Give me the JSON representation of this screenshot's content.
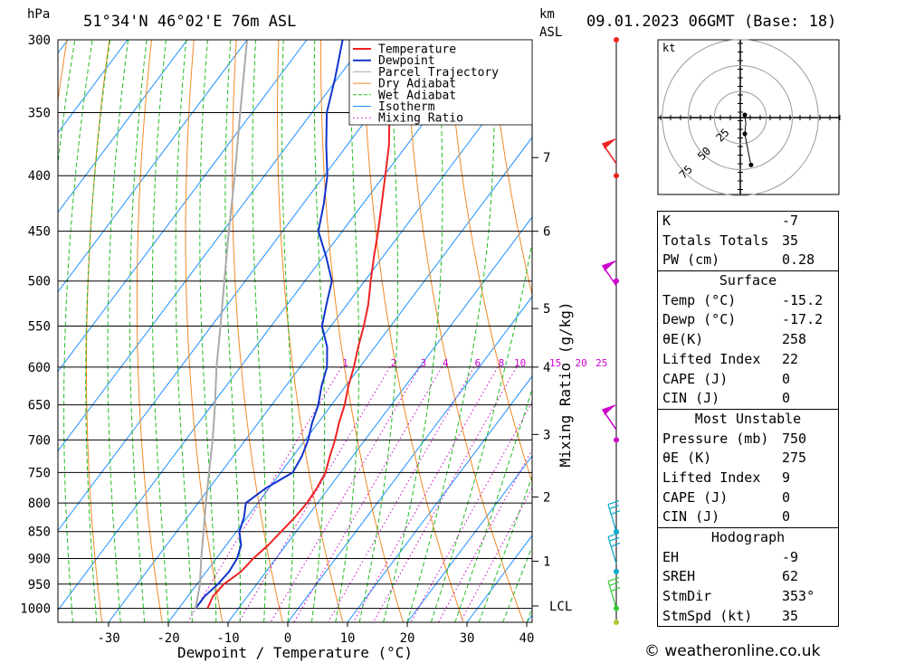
{
  "header": {
    "location": "51°34'N  46°02'E  76m  ASL",
    "datetime": "09.01.2023  06GMT  (Base: 18)",
    "hpa": "hPa",
    "km": "km",
    "asl": "ASL"
  },
  "chart_data": {
    "type": "line",
    "title": "",
    "xlabel": "Dewpoint / Temperature (°C)",
    "ylabel": "hPa",
    "y2label": "Mixing Ratio (g/kg)",
    "pressure_ticks": [
      300,
      350,
      400,
      450,
      500,
      550,
      600,
      650,
      700,
      750,
      800,
      850,
      900,
      950,
      1000
    ],
    "x_ticks": [
      -30,
      -20,
      -10,
      0,
      10,
      20,
      30,
      40
    ],
    "xlim": [
      -40,
      40
    ],
    "ylim": [
      1030,
      300
    ],
    "km_ticks": [
      {
        "label": "7",
        "p": 385
      },
      {
        "label": "6",
        "p": 450
      },
      {
        "label": "5",
        "p": 530
      },
      {
        "label": "4",
        "p": 600
      },
      {
        "label": "3",
        "p": 692
      },
      {
        "label": "2",
        "p": 790
      },
      {
        "label": "1",
        "p": 905
      },
      {
        "label": "LCL",
        "p": 995
      }
    ],
    "mixing_ratio_labels": [
      "1",
      "2",
      "3",
      "4",
      "6",
      "8",
      "10",
      "15",
      "20",
      "25"
    ],
    "legend": [
      "Temperature",
      "Dewpoint",
      "Parcel Trajectory",
      "Dry Adiabat",
      "Wet Adiabat",
      "Isotherm",
      "Mixing Ratio"
    ],
    "legend_position": "top-right",
    "series": [
      {
        "name": "Temperature",
        "color": "#ee2222",
        "points": [
          [
            -15.2,
            1000
          ],
          [
            -15.8,
            975
          ],
          [
            -15.5,
            950
          ],
          [
            -14.2,
            925
          ],
          [
            -13.8,
            900
          ],
          [
            -13.0,
            875
          ],
          [
            -12.5,
            850
          ],
          [
            -12.0,
            825
          ],
          [
            -11.8,
            800
          ],
          [
            -12.0,
            775
          ],
          [
            -12.5,
            750
          ],
          [
            -13.8,
            725
          ],
          [
            -15.0,
            700
          ],
          [
            -16.5,
            675
          ],
          [
            -17.8,
            650
          ],
          [
            -19.5,
            625
          ],
          [
            -21.0,
            600
          ],
          [
            -22.8,
            575
          ],
          [
            -24.5,
            550
          ],
          [
            -26.5,
            525
          ],
          [
            -29.0,
            500
          ],
          [
            -31.5,
            475
          ],
          [
            -34.0,
            450
          ],
          [
            -36.8,
            425
          ],
          [
            -39.8,
            400
          ],
          [
            -43.0,
            375
          ],
          [
            -47.0,
            350
          ],
          [
            -50.5,
            325
          ],
          [
            -53.0,
            300
          ]
        ]
      },
      {
        "name": "Dewpoint",
        "color": "#1133cc",
        "points": [
          [
            -17.2,
            1000
          ],
          [
            -17.2,
            975
          ],
          [
            -16.5,
            950
          ],
          [
            -16.2,
            925
          ],
          [
            -16.5,
            900
          ],
          [
            -17.5,
            875
          ],
          [
            -19.5,
            850
          ],
          [
            -20.5,
            825
          ],
          [
            -22.0,
            800
          ],
          [
            -20.5,
            775
          ],
          [
            -18.0,
            750
          ],
          [
            -18.5,
            725
          ],
          [
            -19.5,
            700
          ],
          [
            -21.0,
            675
          ],
          [
            -22.2,
            650
          ],
          [
            -24.0,
            625
          ],
          [
            -25.5,
            600
          ],
          [
            -28.0,
            575
          ],
          [
            -31.5,
            550
          ],
          [
            -33.5,
            525
          ],
          [
            -35.5,
            500
          ],
          [
            -39.5,
            475
          ],
          [
            -44.0,
            450
          ],
          [
            -46.5,
            425
          ],
          [
            -49.5,
            400
          ],
          [
            -53.5,
            375
          ],
          [
            -57.5,
            350
          ],
          [
            -60.5,
            325
          ],
          [
            -64.0,
            300
          ]
        ]
      },
      {
        "name": "Parcel Trajectory",
        "color": "#aaaaaa",
        "points": [
          [
            -17.2,
            1000
          ],
          [
            -19.5,
            950
          ],
          [
            -22.5,
            900
          ],
          [
            -25.5,
            850
          ],
          [
            -28.7,
            800
          ],
          [
            -32.0,
            750
          ],
          [
            -35.5,
            700
          ],
          [
            -39.5,
            650
          ],
          [
            -44.0,
            600
          ],
          [
            -48.5,
            550
          ],
          [
            -53.5,
            500
          ],
          [
            -59.0,
            450
          ],
          [
            -65.0,
            400
          ],
          [
            -72.0,
            350
          ],
          [
            -80.0,
            300
          ]
        ]
      }
    ]
  },
  "wind": {
    "colors": [
      "#ee2222",
      "#cc00cc",
      "#00aacc",
      "#33cc33",
      "#99cc33"
    ],
    "surface_dots": [
      "#ee2222",
      "#ee2222",
      "#cc00cc",
      "#cc00cc",
      "#00aacc",
      "#00aacc",
      "#33cc33",
      "#aacc33"
    ]
  },
  "hodograph": {
    "unit": "kt",
    "rings": [
      "25",
      "50",
      "75"
    ],
    "points": [
      [
        0,
        2
      ],
      [
        2,
        -4
      ],
      [
        0,
        -12
      ],
      [
        4,
        -20
      ],
      [
        10,
        -32
      ],
      [
        12,
        -35
      ]
    ]
  },
  "indices": {
    "top": [
      {
        "label": "K",
        "value": "-7"
      },
      {
        "label": "Totals Totals",
        "value": "35"
      },
      {
        "label": "PW (cm)",
        "value": "0.28"
      }
    ],
    "surface": {
      "title": "Surface",
      "rows": [
        {
          "label": "Temp (°C)",
          "value": "-15.2"
        },
        {
          "label": "Dewp (°C)",
          "value": "-17.2"
        },
        {
          "label": "θE(K)",
          "value": "258"
        },
        {
          "label": "Lifted Index",
          "value": "22"
        },
        {
          "label": "CAPE (J)",
          "value": "0"
        },
        {
          "label": "CIN (J)",
          "value": "0"
        }
      ]
    },
    "most_unstable": {
      "title": "Most Unstable",
      "rows": [
        {
          "label": "Pressure (mb)",
          "value": "750"
        },
        {
          "label": "θE (K)",
          "value": "275"
        },
        {
          "label": "Lifted Index",
          "value": "9"
        },
        {
          "label": "CAPE (J)",
          "value": "0"
        },
        {
          "label": "CIN (J)",
          "value": "0"
        }
      ]
    },
    "hodograph": {
      "title": "Hodograph",
      "rows": [
        {
          "label": "EH",
          "value": "-9"
        },
        {
          "label": "SREH",
          "value": "62"
        },
        {
          "label": "StmDir",
          "value": "353°"
        },
        {
          "label": "StmSpd (kt)",
          "value": "35"
        }
      ]
    }
  },
  "footer": "© weatheronline.co.uk"
}
